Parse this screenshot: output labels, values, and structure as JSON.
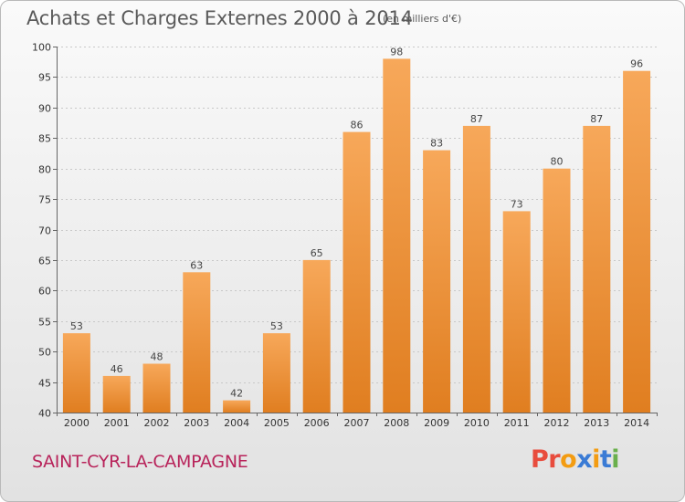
{
  "header": {
    "title": "Achats et Charges Externes 2000 à 2014",
    "unit": "(en milliers d'€)"
  },
  "footer": {
    "commune": "SAINT-CYR-LA-CAMPAGNE",
    "logo": "Proxiti"
  },
  "colors": {
    "bar_light": "#f7a85a",
    "bar_dark": "#e07e20",
    "title": "#5a5a5a",
    "commune": "#b8235a",
    "logo_letters": [
      "#e84c3d",
      "#e84c3d",
      "#f39c12",
      "#3a7bd5",
      "#f39c12",
      "#3a7bd5",
      "#6ab04c"
    ]
  },
  "chart_data": {
    "type": "bar",
    "title": "Achats et Charges Externes 2000 à 2014",
    "subtitle": "(en milliers d'€)",
    "xlabel": "",
    "ylabel": "",
    "categories": [
      "2000",
      "2001",
      "2002",
      "2003",
      "2004",
      "2005",
      "2006",
      "2007",
      "2008",
      "2009",
      "2010",
      "2011",
      "2012",
      "2013",
      "2014"
    ],
    "values": [
      53,
      46,
      48,
      63,
      42,
      53,
      65,
      86,
      98,
      83,
      87,
      73,
      80,
      87,
      96
    ],
    "ylim": [
      40,
      100
    ],
    "yticks": [
      40,
      45,
      50,
      55,
      60,
      65,
      70,
      75,
      80,
      85,
      90,
      95,
      100
    ],
    "grid": true,
    "data_labels": true
  }
}
